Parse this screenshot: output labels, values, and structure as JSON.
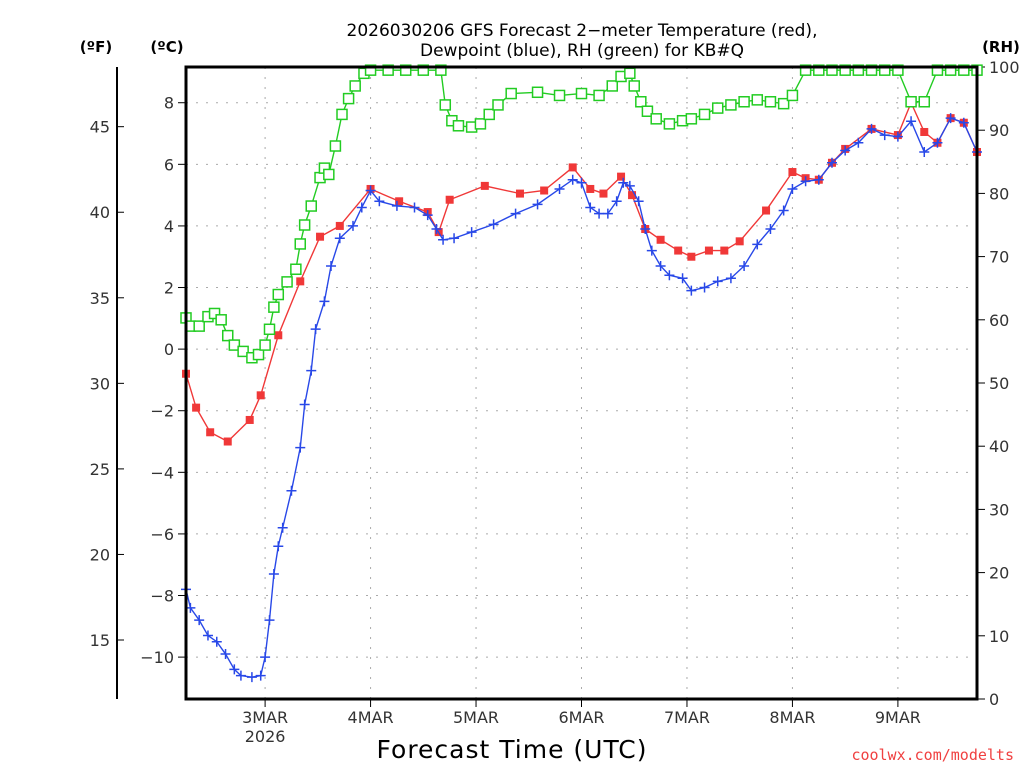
{
  "chart_data": {
    "type": "line",
    "title_line1": "2026030206 GFS Forecast 2−meter Temperature (red),",
    "title_line2": "Dewpoint (blue), RH (green) for KB#Q",
    "xlabel": "Forecast Time (UTC)",
    "x_units": "forecast hours from 2026-03-02 06Z",
    "xlim": [
      0,
      180
    ],
    "x_ticks": [
      {
        "hour": 18,
        "label": "3MAR",
        "sublabel": "2026"
      },
      {
        "hour": 42,
        "label": "4MAR",
        "sublabel": ""
      },
      {
        "hour": 66,
        "label": "5MAR",
        "sublabel": ""
      },
      {
        "hour": 90,
        "label": "6MAR",
        "sublabel": ""
      },
      {
        "hour": 114,
        "label": "7MAR",
        "sublabel": ""
      },
      {
        "hour": 138,
        "label": "8MAR",
        "sublabel": ""
      },
      {
        "hour": 162,
        "label": "9MAR",
        "sublabel": ""
      }
    ],
    "y_left_c": {
      "unit_label": "(ºC)",
      "ylim": [
        -11.36,
        9.16
      ],
      "ticks": [
        8,
        6,
        4,
        2,
        0,
        -2,
        -4,
        -6,
        -8,
        -10
      ],
      "tick_labels": [
        "8",
        "6",
        "4",
        "2",
        "0",
        "−2",
        "−4",
        "−6",
        "−8",
        "−10"
      ]
    },
    "y_left_f": {
      "unit_label": "(ºF)",
      "ticks": [
        45,
        40,
        35,
        30,
        25,
        20,
        15
      ]
    },
    "y_right_rh": {
      "unit_label": "(RH)",
      "ylim": [
        0,
        100
      ],
      "ticks": [
        100,
        90,
        80,
        70,
        60,
        50,
        40,
        30,
        20,
        10,
        0
      ]
    },
    "grid": true,
    "series": [
      {
        "name": "Temperature",
        "color": "#f03838",
        "marker": "filled-square",
        "axis": "celsius",
        "x": [
          0,
          2.3,
          5.5,
          9.5,
          14.5,
          17,
          21,
          26,
          30.5,
          35,
          42,
          48.5,
          55,
          57.5,
          60,
          68,
          76,
          81.5,
          88,
          92,
          95,
          99,
          101.5,
          104.5,
          108,
          112,
          115,
          119,
          122.5,
          126,
          132,
          138,
          141,
          144,
          147,
          150,
          156,
          162,
          165,
          168,
          171,
          174,
          177,
          180
        ],
        "values": [
          -0.8,
          -1.9,
          -2.7,
          -3.0,
          -2.3,
          -1.5,
          0.45,
          2.2,
          3.65,
          4.0,
          5.2,
          4.8,
          4.45,
          3.8,
          4.85,
          5.3,
          5.05,
          5.15,
          5.9,
          5.2,
          5.05,
          5.6,
          5.0,
          3.9,
          3.55,
          3.2,
          3.0,
          3.2,
          3.2,
          3.5,
          4.5,
          5.75,
          5.55,
          5.5,
          6.05,
          6.5,
          7.15,
          6.95,
          8.0,
          7.05,
          6.7,
          7.5,
          7.35,
          6.4
        ]
      },
      {
        "name": "Dewpoint",
        "color": "#2848e8",
        "marker": "plus",
        "axis": "celsius",
        "x": [
          0,
          1,
          3,
          5,
          7,
          9,
          11,
          12.5,
          15,
          17,
          18,
          19,
          20,
          21,
          22,
          24,
          26,
          27,
          28.5,
          29.5,
          31.5,
          33,
          35,
          38,
          40,
          42,
          44,
          48,
          52,
          55,
          57,
          58.5,
          61,
          65,
          70,
          75,
          80,
          85,
          88,
          90,
          92,
          94,
          96,
          98,
          99.5,
          101,
          103,
          104.5,
          106,
          108,
          110,
          113,
          115,
          118,
          121,
          124,
          127,
          130,
          133,
          136,
          138,
          141,
          144,
          147,
          150,
          153,
          156,
          159,
          162,
          165,
          168,
          171,
          174,
          177,
          180
        ],
        "values": [
          -7.8,
          -8.4,
          -8.8,
          -9.3,
          -9.5,
          -9.9,
          -10.4,
          -10.6,
          -10.65,
          -10.6,
          -10.0,
          -8.8,
          -7.3,
          -6.4,
          -5.8,
          -4.6,
          -3.2,
          -1.8,
          -0.7,
          0.65,
          1.55,
          2.7,
          3.6,
          4.0,
          4.6,
          5.15,
          4.8,
          4.65,
          4.6,
          4.35,
          3.9,
          3.55,
          3.6,
          3.8,
          4.05,
          4.4,
          4.7,
          5.2,
          5.5,
          5.4,
          4.6,
          4.4,
          4.4,
          4.8,
          5.4,
          5.3,
          4.8,
          3.9,
          3.2,
          2.7,
          2.4,
          2.3,
          1.9,
          2.0,
          2.2,
          2.3,
          2.7,
          3.4,
          3.9,
          4.5,
          5.2,
          5.45,
          5.5,
          6.05,
          6.45,
          6.7,
          7.15,
          6.95,
          6.9,
          7.4,
          6.4,
          6.7,
          7.5,
          7.35,
          6.4
        ]
      },
      {
        "name": "RH",
        "color": "#22cc22",
        "marker": "open-square",
        "axis": "rh",
        "x": [
          0,
          1,
          3,
          5,
          6.5,
          8,
          9.5,
          11,
          13,
          15,
          16.5,
          18,
          19,
          20,
          21,
          23,
          25,
          26,
          27,
          28.5,
          30.5,
          31.5,
          32.5,
          34,
          35.5,
          37,
          38.5,
          40.5,
          42,
          46,
          50,
          54,
          58,
          59,
          60.5,
          62,
          65,
          67,
          69,
          71,
          74,
          80,
          85,
          90,
          94,
          97,
          99,
          101,
          102,
          103.5,
          105,
          107,
          110,
          113,
          115,
          118,
          121,
          124,
          127,
          130,
          133,
          136,
          138,
          141,
          144,
          147,
          150,
          153,
          156,
          159,
          162,
          165,
          168,
          171,
          174,
          177,
          180
        ],
        "values": [
          60.3,
          59,
          59,
          60.5,
          61,
          60,
          57.5,
          56,
          55,
          54,
          54.5,
          56,
          58.5,
          62,
          64,
          66,
          68,
          72,
          75,
          78,
          82.5,
          84,
          83,
          87.5,
          92.5,
          95,
          97,
          99,
          99.5,
          99.5,
          99.5,
          99.5,
          99.5,
          94,
          91.5,
          90.7,
          90.5,
          91,
          92.5,
          94,
          95.8,
          96,
          95.5,
          95.8,
          95.5,
          97,
          98.5,
          99,
          97,
          94.5,
          93,
          91.8,
          91,
          91.5,
          91.8,
          92.5,
          93.5,
          94,
          94.5,
          94.8,
          94.5,
          94.2,
          95.5,
          99.5,
          99.5,
          99.5,
          99.5,
          99.5,
          99.5,
          99.5,
          99.5,
          94.5,
          94.5,
          99.5,
          99.5,
          99.5,
          99.5
        ]
      }
    ],
    "credit": "coolwx.com/modelts"
  }
}
